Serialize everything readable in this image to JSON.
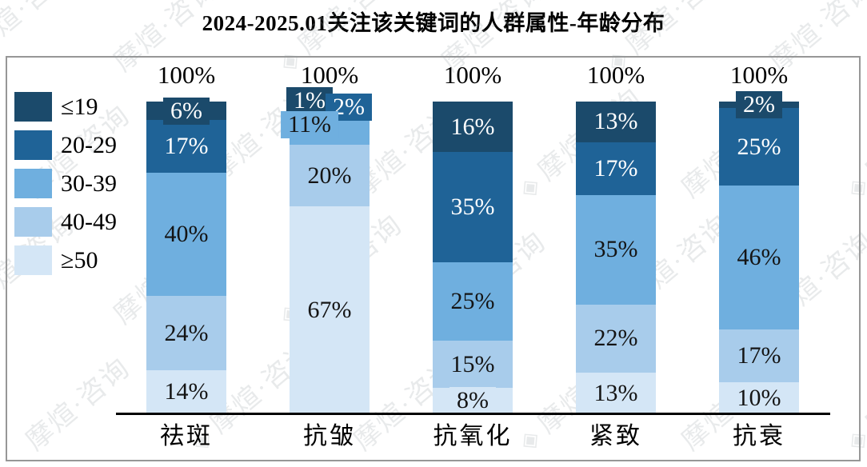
{
  "title": "2024-2025.01关注该关键词的人群属性-年龄分布",
  "watermark": {
    "text": "摩煊·咨询",
    "logo_icon": "diamond-logo"
  },
  "chart_data": {
    "type": "bar",
    "variant": "stacked-percentage-column",
    "title": "2024-2025.01关注该关键词的人群属性-年龄分布",
    "categories": [
      "祛斑",
      "抗皱",
      "抗氧化",
      "紧致",
      "抗衰"
    ],
    "series": [
      {
        "name": "≤19",
        "color": "#1b4a6b",
        "label_color": "#ffffff",
        "values": [
          6,
          1,
          16,
          13,
          2
        ]
      },
      {
        "name": "20-29",
        "color": "#1f6397",
        "label_color": "#ffffff",
        "values": [
          17,
          2,
          35,
          17,
          25
        ]
      },
      {
        "name": "30-39",
        "color": "#6fafdf",
        "label_color": "#141414",
        "values": [
          40,
          11,
          25,
          35,
          46
        ]
      },
      {
        "name": "40-49",
        "color": "#a8cceb",
        "label_color": "#141414",
        "values": [
          24,
          20,
          15,
          22,
          17
        ]
      },
      {
        "name": "≥50",
        "color": "#d4e6f6",
        "label_color": "#141414",
        "values": [
          14,
          67,
          8,
          13,
          10
        ]
      }
    ],
    "totals_label": "100%",
    "value_suffix": "%",
    "ylim": [
      0,
      100
    ],
    "grid": false,
    "legend_position": "left",
    "legend": [
      "≤19",
      "20-29",
      "30-39",
      "40-49",
      "≥50"
    ],
    "axis_color": "#000000",
    "frame_color": "#979797"
  }
}
